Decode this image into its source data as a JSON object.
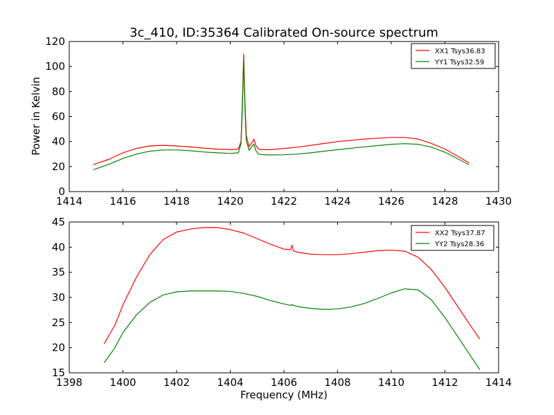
{
  "chart_data": [
    {
      "type": "line",
      "title": "3c_410, ID:35364 Calibrated On-source spectrum",
      "xlabel": "",
      "ylabel": "Power in Kelvin",
      "xlim": [
        1414,
        1430
      ],
      "ylim": [
        0,
        120
      ],
      "xticks": [
        1414,
        1416,
        1418,
        1420,
        1422,
        1424,
        1426,
        1428,
        1430
      ],
      "yticks": [
        0,
        20,
        40,
        60,
        80,
        100,
        120
      ],
      "grid": false,
      "legend_position": "top-right",
      "series": [
        {
          "name": "XX1 Tsys36.83",
          "color": "#ff0000",
          "x": [
            1414.9,
            1415.5,
            1416,
            1416.5,
            1417,
            1417.5,
            1418,
            1418.5,
            1419,
            1419.5,
            1420,
            1420.3,
            1420.4,
            1420.45,
            1420.5,
            1420.55,
            1420.6,
            1420.65,
            1420.7,
            1420.8,
            1420.88,
            1420.95,
            1421.05,
            1421.2,
            1421.5,
            1422,
            1422.5,
            1423,
            1423.5,
            1424,
            1424.5,
            1425,
            1425.5,
            1426,
            1426.5,
            1427,
            1427.5,
            1428,
            1428.5,
            1428.9
          ],
          "values": [
            21.5,
            26,
            31,
            34.5,
            36.5,
            37,
            36.5,
            35.7,
            34.8,
            34,
            33.5,
            34,
            40,
            70,
            110,
            70,
            45,
            40,
            36,
            39,
            42,
            37,
            34,
            33.5,
            33.5,
            34.5,
            35.5,
            37,
            38.5,
            40,
            41,
            42,
            42.7,
            43.3,
            43.3,
            42,
            38.5,
            34,
            28,
            23
          ]
        },
        {
          "name": "YY1 Tsys32.59",
          "color": "#008000",
          "x": [
            1414.9,
            1415.5,
            1416,
            1416.5,
            1417,
            1417.5,
            1418,
            1418.5,
            1419,
            1419.5,
            1420,
            1420.3,
            1420.4,
            1420.45,
            1420.5,
            1420.55,
            1420.6,
            1420.65,
            1420.7,
            1420.8,
            1420.88,
            1420.95,
            1421.05,
            1421.2,
            1421.5,
            1422,
            1422.5,
            1423,
            1423.5,
            1424,
            1424.5,
            1425,
            1425.5,
            1426,
            1426.5,
            1427,
            1427.5,
            1428,
            1428.5,
            1428.9
          ],
          "values": [
            17.5,
            22,
            26.5,
            30,
            32.3,
            33.3,
            33.3,
            32.7,
            31.7,
            31,
            30.5,
            31,
            38,
            65,
            105,
            65,
            40,
            37,
            33,
            36,
            38,
            33,
            30,
            29.5,
            29.3,
            29.5,
            30,
            31,
            32.3,
            33.5,
            34.7,
            35.8,
            36.8,
            37.8,
            38.3,
            37.8,
            35.5,
            31.5,
            26,
            21.5
          ]
        }
      ]
    },
    {
      "type": "line",
      "title": "",
      "xlabel": "Frequency (MHz)",
      "ylabel": "",
      "xlim": [
        1398,
        1414
      ],
      "ylim": [
        15,
        45
      ],
      "xticks": [
        1398,
        1400,
        1402,
        1404,
        1406,
        1408,
        1410,
        1412,
        1414
      ],
      "yticks": [
        15,
        20,
        25,
        30,
        35,
        40,
        45
      ],
      "grid": false,
      "legend_position": "top-right",
      "series": [
        {
          "name": "XX2 Tsys37.87",
          "color": "#ff0000",
          "x": [
            1399.3,
            1399.7,
            1400,
            1400.5,
            1401,
            1401.5,
            1402,
            1402.5,
            1403,
            1403.5,
            1404,
            1404.5,
            1405,
            1405.5,
            1406,
            1406.25,
            1406.3,
            1406.35,
            1406.5,
            1407,
            1407.5,
            1408,
            1408.5,
            1409,
            1409.5,
            1410,
            1410.5,
            1411,
            1411.5,
            1412,
            1412.5,
            1413,
            1413.3
          ],
          "values": [
            20.8,
            24.5,
            28.5,
            34,
            38.5,
            41.5,
            43,
            43.6,
            43.9,
            43.9,
            43.5,
            42.8,
            41.7,
            40.6,
            39.6,
            39.5,
            40.4,
            39.3,
            39,
            38.6,
            38.5,
            38.5,
            38.7,
            39,
            39.3,
            39.4,
            39.2,
            38,
            35.5,
            32,
            28,
            24,
            21.7
          ]
        },
        {
          "name": "YY2 Tsys28.36",
          "color": "#008000",
          "x": [
            1399.3,
            1399.7,
            1400,
            1400.5,
            1401,
            1401.5,
            1402,
            1402.5,
            1403,
            1403.5,
            1404,
            1404.5,
            1405,
            1405.5,
            1406,
            1406.25,
            1406.3,
            1406.35,
            1406.5,
            1407,
            1407.5,
            1408,
            1408.5,
            1409,
            1409.5,
            1410,
            1410.5,
            1411,
            1411.5,
            1412,
            1412.5,
            1413,
            1413.3
          ],
          "values": [
            17,
            20,
            23,
            26.5,
            29,
            30.5,
            31.1,
            31.3,
            31.3,
            31.3,
            31.2,
            30.8,
            30.2,
            29.4,
            28.7,
            28.4,
            28.6,
            28.4,
            28.2,
            27.8,
            27.6,
            27.7,
            28.1,
            28.8,
            29.8,
            30.9,
            31.7,
            31.5,
            29.5,
            26,
            22,
            18,
            15.6
          ]
        }
      ]
    }
  ]
}
